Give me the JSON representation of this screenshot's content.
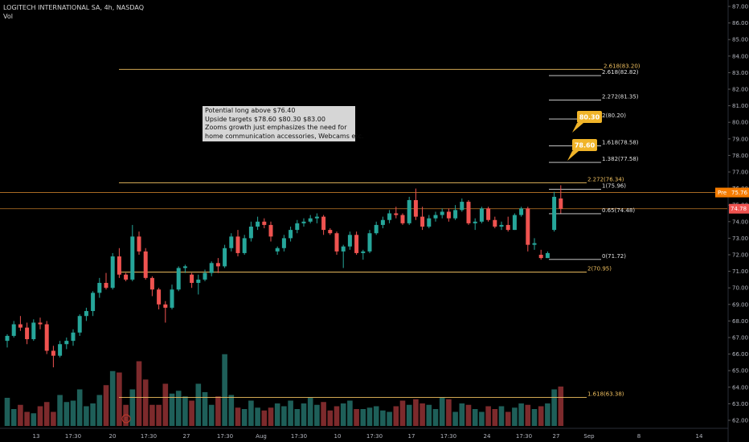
{
  "header": {
    "title": "LOGITECH INTERNATIONAL SA, 4h, NASDAQ",
    "indicator": "Vol"
  },
  "annotation": [
    "Potential long above $76.40",
    "Upside targets $78.60 $80.30 $83.00",
    "Zooms growth just emphasizes the need for",
    "home communication accessories, Webcams etc."
  ],
  "colors": {
    "background": "#000000",
    "up": "#26a69a",
    "down": "#ef5350",
    "vol_up": "#1e5f59",
    "vol_down": "#7d2a2c",
    "fib_orange": "#f0c060",
    "fib_white": "#e0e0e0",
    "axis_text": "#b2b5be",
    "callout": "#f0b429",
    "pre_label": "#f57c00",
    "last_label": "#ef5350"
  },
  "chart_data": {
    "type": "candlestick",
    "symbol": "LOGITECH INTERNATIONAL SA",
    "interval": "4h",
    "exchange": "NASDAQ",
    "y_axis": {
      "min": 62.0,
      "max": 87.0,
      "ticks": [
        "62.00",
        "63.00",
        "64.00",
        "65.00",
        "66.00",
        "67.00",
        "68.00",
        "69.00",
        "70.00",
        "71.00",
        "72.00",
        "73.00",
        "74.00",
        "75.00",
        "76.00",
        "77.00",
        "78.00",
        "79.00",
        "80.00",
        "81.00",
        "82.00",
        "83.00",
        "84.00",
        "85.00",
        "86.00",
        "87.00"
      ]
    },
    "x_axis": {
      "ticks": [
        "13",
        "17:30",
        "20",
        "17:30",
        "27",
        "17:30",
        "Aug",
        "17:30",
        "10",
        "17:30",
        "17",
        "17:30",
        "24",
        "17:30",
        "27",
        "Sep",
        "8",
        "14"
      ]
    },
    "candles": [
      {
        "o": 66.8,
        "h": 67.2,
        "l": 66.4,
        "c": 67.1
      },
      {
        "o": 67.1,
        "h": 68.0,
        "l": 67.0,
        "c": 67.8
      },
      {
        "o": 67.8,
        "h": 68.3,
        "l": 67.4,
        "c": 67.6
      },
      {
        "o": 67.6,
        "h": 67.9,
        "l": 66.6,
        "c": 66.9
      },
      {
        "o": 66.9,
        "h": 68.1,
        "l": 66.8,
        "c": 67.9
      },
      {
        "o": 67.9,
        "h": 68.2,
        "l": 67.5,
        "c": 67.8
      },
      {
        "o": 67.8,
        "h": 68.0,
        "l": 66.0,
        "c": 66.2
      },
      {
        "o": 66.2,
        "h": 66.5,
        "l": 65.2,
        "c": 65.9
      },
      {
        "o": 65.9,
        "h": 66.8,
        "l": 65.8,
        "c": 66.6
      },
      {
        "o": 66.6,
        "h": 67.0,
        "l": 66.3,
        "c": 66.8
      },
      {
        "o": 66.8,
        "h": 67.5,
        "l": 66.5,
        "c": 67.3
      },
      {
        "o": 67.3,
        "h": 68.4,
        "l": 67.1,
        "c": 68.3
      },
      {
        "o": 68.3,
        "h": 68.8,
        "l": 68.0,
        "c": 68.6
      },
      {
        "o": 68.6,
        "h": 69.8,
        "l": 68.3,
        "c": 69.7
      },
      {
        "o": 69.7,
        "h": 70.6,
        "l": 69.4,
        "c": 70.3
      },
      {
        "o": 70.3,
        "h": 70.9,
        "l": 69.9,
        "c": 70.0
      },
      {
        "o": 70.0,
        "h": 72.1,
        "l": 69.9,
        "c": 71.9
      },
      {
        "o": 71.9,
        "h": 72.4,
        "l": 70.6,
        "c": 70.8
      },
      {
        "o": 70.8,
        "h": 70.9,
        "l": 70.4,
        "c": 70.5
      },
      {
        "o": 70.5,
        "h": 73.8,
        "l": 70.4,
        "c": 73.1
      },
      {
        "o": 73.1,
        "h": 73.4,
        "l": 72.0,
        "c": 72.2
      },
      {
        "o": 72.2,
        "h": 72.4,
        "l": 70.5,
        "c": 70.6
      },
      {
        "o": 70.6,
        "h": 70.7,
        "l": 69.5,
        "c": 69.9
      },
      {
        "o": 69.9,
        "h": 70.0,
        "l": 68.7,
        "c": 69.0
      },
      {
        "o": 69.0,
        "h": 69.2,
        "l": 67.9,
        "c": 68.8
      },
      {
        "o": 68.8,
        "h": 70.2,
        "l": 68.7,
        "c": 69.9
      },
      {
        "o": 69.9,
        "h": 71.3,
        "l": 69.8,
        "c": 71.2
      },
      {
        "o": 71.2,
        "h": 71.4,
        "l": 70.9,
        "c": 71.3
      },
      {
        "o": 70.8,
        "h": 70.9,
        "l": 70.0,
        "c": 70.3
      },
      {
        "o": 70.3,
        "h": 70.8,
        "l": 69.6,
        "c": 70.5
      },
      {
        "o": 70.5,
        "h": 71.1,
        "l": 70.4,
        "c": 70.9
      },
      {
        "o": 70.9,
        "h": 71.6,
        "l": 70.7,
        "c": 71.5
      },
      {
        "o": 71.5,
        "h": 71.8,
        "l": 70.9,
        "c": 71.3
      },
      {
        "o": 71.3,
        "h": 72.6,
        "l": 71.2,
        "c": 72.4
      },
      {
        "o": 72.4,
        "h": 73.3,
        "l": 72.2,
        "c": 73.1
      },
      {
        "o": 73.1,
        "h": 73.5,
        "l": 71.9,
        "c": 72.1
      },
      {
        "o": 72.1,
        "h": 73.2,
        "l": 72.0,
        "c": 73.0
      },
      {
        "o": 73.0,
        "h": 74.0,
        "l": 72.8,
        "c": 73.7
      },
      {
        "o": 73.7,
        "h": 74.3,
        "l": 73.5,
        "c": 74.0
      },
      {
        "o": 74.0,
        "h": 74.2,
        "l": 73.6,
        "c": 73.8
      },
      {
        "o": 73.8,
        "h": 74.0,
        "l": 72.8,
        "c": 73.1
      },
      {
        "o": 72.2,
        "h": 72.5,
        "l": 72.0,
        "c": 72.4
      },
      {
        "o": 72.4,
        "h": 73.2,
        "l": 72.2,
        "c": 73.0
      },
      {
        "o": 73.0,
        "h": 73.7,
        "l": 72.8,
        "c": 73.5
      },
      {
        "o": 73.5,
        "h": 74.1,
        "l": 73.3,
        "c": 73.9
      },
      {
        "o": 73.9,
        "h": 74.2,
        "l": 73.7,
        "c": 74.0
      },
      {
        "o": 74.0,
        "h": 74.4,
        "l": 73.9,
        "c": 74.2
      },
      {
        "o": 74.2,
        "h": 74.5,
        "l": 73.9,
        "c": 74.3
      },
      {
        "o": 74.3,
        "h": 74.4,
        "l": 73.2,
        "c": 73.5
      },
      {
        "o": 73.5,
        "h": 73.6,
        "l": 73.2,
        "c": 73.3
      },
      {
        "o": 73.3,
        "h": 73.4,
        "l": 72.0,
        "c": 72.2
      },
      {
        "o": 72.2,
        "h": 72.6,
        "l": 71.2,
        "c": 72.5
      },
      {
        "o": 72.5,
        "h": 73.4,
        "l": 72.3,
        "c": 73.2
      },
      {
        "o": 73.2,
        "h": 73.4,
        "l": 72.0,
        "c": 72.1
      },
      {
        "o": 72.1,
        "h": 72.3,
        "l": 71.7,
        "c": 72.2
      },
      {
        "o": 72.2,
        "h": 73.5,
        "l": 72.1,
        "c": 73.3
      },
      {
        "o": 73.3,
        "h": 74.0,
        "l": 73.2,
        "c": 73.8
      },
      {
        "o": 73.8,
        "h": 74.3,
        "l": 73.6,
        "c": 74.1
      },
      {
        "o": 74.1,
        "h": 74.7,
        "l": 73.9,
        "c": 74.5
      },
      {
        "o": 74.5,
        "h": 74.9,
        "l": 74.2,
        "c": 74.4
      },
      {
        "o": 74.4,
        "h": 74.5,
        "l": 73.8,
        "c": 73.9
      },
      {
        "o": 73.9,
        "h": 75.5,
        "l": 73.8,
        "c": 75.3
      },
      {
        "o": 75.3,
        "h": 76.0,
        "l": 74.1,
        "c": 74.3
      },
      {
        "o": 74.3,
        "h": 74.9,
        "l": 73.5,
        "c": 73.7
      },
      {
        "o": 73.7,
        "h": 74.4,
        "l": 73.6,
        "c": 74.2
      },
      {
        "o": 74.2,
        "h": 74.6,
        "l": 74.0,
        "c": 74.4
      },
      {
        "o": 74.4,
        "h": 74.8,
        "l": 74.2,
        "c": 74.6
      },
      {
        "o": 74.6,
        "h": 74.8,
        "l": 74.0,
        "c": 74.2
      },
      {
        "o": 74.2,
        "h": 75.0,
        "l": 74.1,
        "c": 74.7
      },
      {
        "o": 74.7,
        "h": 75.4,
        "l": 74.6,
        "c": 75.2
      },
      {
        "o": 75.2,
        "h": 75.3,
        "l": 73.8,
        "c": 73.9
      },
      {
        "o": 73.9,
        "h": 74.2,
        "l": 73.5,
        "c": 74.0
      },
      {
        "o": 74.0,
        "h": 74.9,
        "l": 73.9,
        "c": 74.8
      },
      {
        "o": 74.8,
        "h": 74.9,
        "l": 74.0,
        "c": 74.1
      },
      {
        "o": 74.1,
        "h": 74.3,
        "l": 73.6,
        "c": 73.7
      },
      {
        "o": 73.7,
        "h": 74.0,
        "l": 73.5,
        "c": 73.8
      },
      {
        "o": 73.8,
        "h": 74.3,
        "l": 73.4,
        "c": 73.5
      },
      {
        "o": 73.5,
        "h": 74.5,
        "l": 73.5,
        "c": 74.4
      },
      {
        "o": 74.4,
        "h": 74.9,
        "l": 74.3,
        "c": 74.8
      },
      {
        "o": 74.8,
        "h": 74.9,
        "l": 72.2,
        "c": 72.6
      },
      {
        "o": 72.6,
        "h": 73.0,
        "l": 72.3,
        "c": 72.7
      },
      {
        "o": 72.0,
        "h": 72.3,
        "l": 71.7,
        "c": 71.8
      },
      {
        "o": 71.8,
        "h": 72.2,
        "l": 71.8,
        "c": 72.1
      },
      {
        "o": 73.5,
        "h": 75.8,
        "l": 73.4,
        "c": 75.5
      },
      {
        "o": 75.4,
        "h": 76.2,
        "l": 74.5,
        "c": 74.78
      }
    ],
    "volume": [
      2.0,
      1.2,
      1.5,
      1.0,
      0.9,
      1.4,
      1.7,
      1.0,
      2.2,
      1.7,
      1.8,
      2.6,
      1.4,
      1.6,
      2.2,
      2.9,
      3.9,
      3.8,
      1.5,
      2.6,
      4.6,
      3.3,
      1.5,
      1.5,
      3.0,
      2.3,
      2.5,
      2.1,
      1.8,
      3.0,
      2.4,
      1.5,
      2.1,
      5.1,
      2.2,
      1.3,
      1.2,
      1.8,
      1.3,
      1.1,
      1.3,
      1.6,
      1.4,
      1.8,
      1.2,
      1.6,
      2.0,
      1.5,
      1.7,
      1.1,
      1.4,
      1.6,
      1.8,
      1.2,
      1.2,
      1.3,
      1.4,
      1.1,
      1.0,
      1.4,
      1.8,
      1.5,
      1.9,
      1.6,
      1.5,
      1.2,
      2.0,
      1.9,
      1.0,
      1.6,
      1.5,
      1.2,
      1.0,
      1.4,
      1.2,
      1.4,
      1.0,
      1.3,
      1.6,
      1.5,
      1.2,
      1.4,
      1.6,
      2.6,
      2.8
    ],
    "fib_levels": [
      {
        "label": "2.618(83.20)",
        "value": 83.2,
        "color": "orange"
      },
      {
        "label": "2.618(82.82)",
        "value": 82.82,
        "color": "white"
      },
      {
        "label": "2.272(81.35)",
        "value": 81.35,
        "color": "white"
      },
      {
        "label": "2(80.20)",
        "value": 80.2,
        "color": "white"
      },
      {
        "label": "1.618(78.58)",
        "value": 78.58,
        "color": "white"
      },
      {
        "label": "1.382(77.58)",
        "value": 77.58,
        "color": "white"
      },
      {
        "label": "2.272(76.34)",
        "value": 76.34,
        "color": "orange"
      },
      {
        "label": "1(75.96)",
        "value": 75.96,
        "color": "white"
      },
      {
        "label": "0.65(74.48)",
        "value": 74.48,
        "color": "white"
      },
      {
        "label": "0(71.72)",
        "value": 71.72,
        "color": "white"
      },
      {
        "label": "2(70.95)",
        "value": 70.95,
        "color": "orange"
      },
      {
        "label": "1.618(63.38)",
        "value": 63.38,
        "color": "orange"
      }
    ],
    "horizontal_lines": [
      75.76,
      74.78
    ],
    "targets": [
      {
        "label": "80.30",
        "value": 80.3
      },
      {
        "label": "78.60",
        "value": 78.6
      }
    ],
    "price_labels": [
      {
        "tag": "Pre",
        "value": "75.76"
      },
      {
        "tag": "",
        "value": "74.78"
      }
    ],
    "partial_tick_label": "76.",
    "event_marker": "E"
  }
}
